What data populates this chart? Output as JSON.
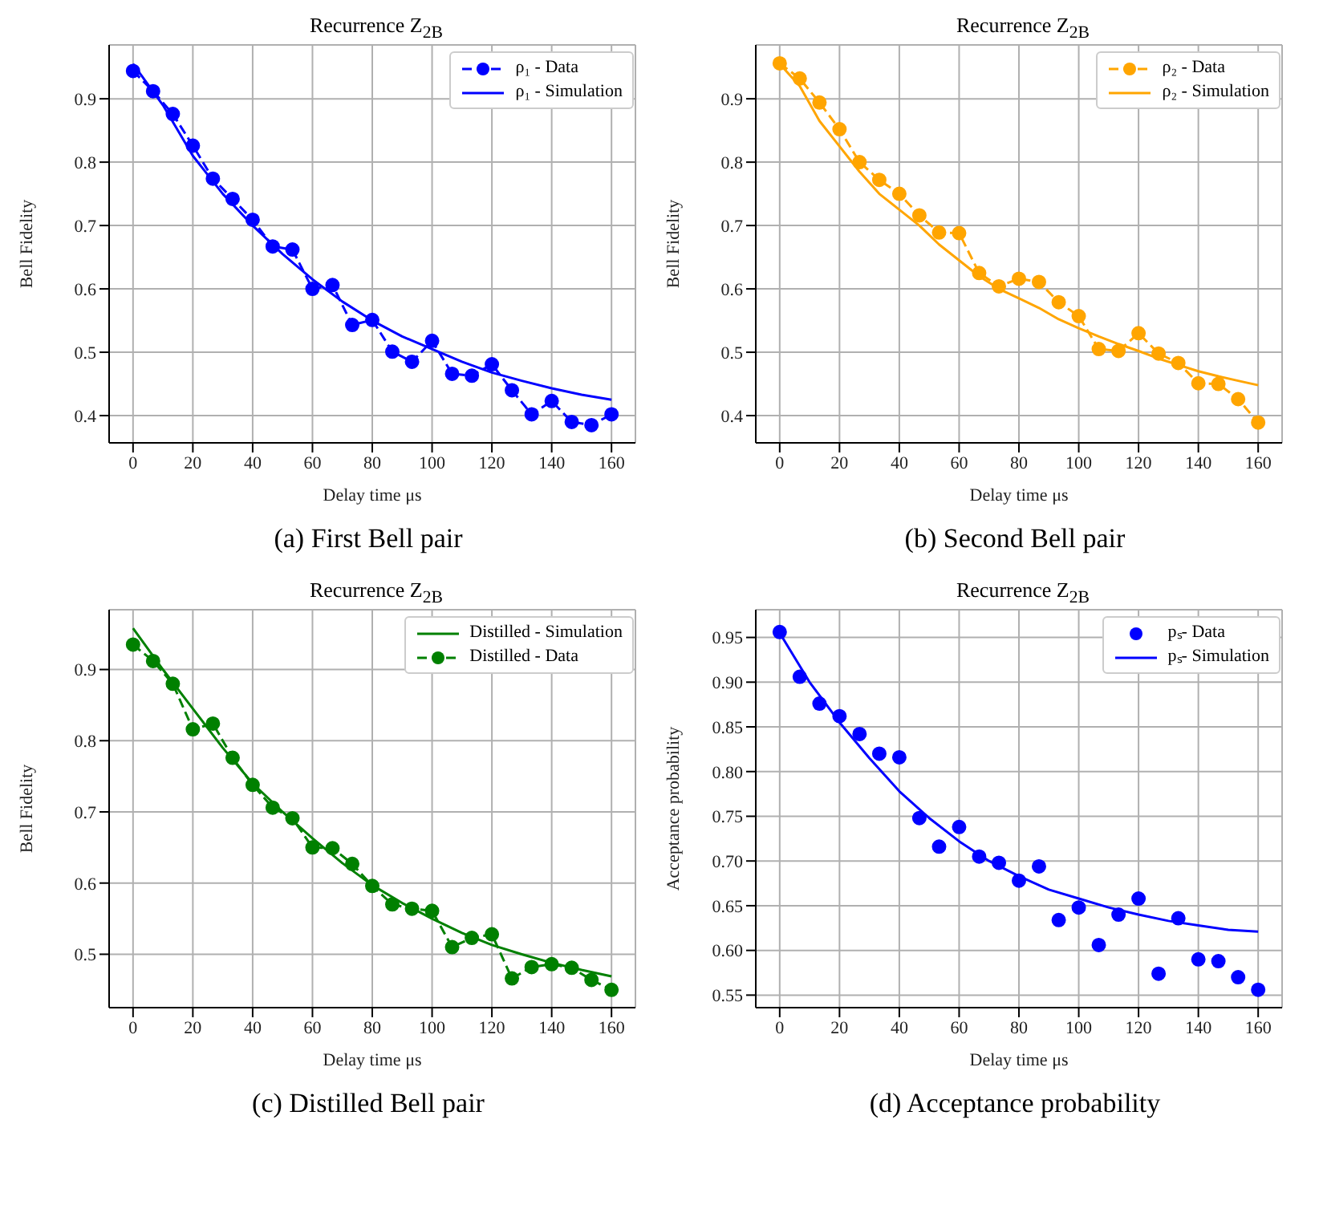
{
  "chart_data": [
    {
      "type": "line",
      "title": "Recurrence Z$_{2B}$",
      "xlabel": "Delay time μs",
      "ylabel": "Bell Fidelity",
      "annotations": [
        "(a) First Bell pair"
      ],
      "xlim": [
        -8,
        168
      ],
      "xticks": [
        0,
        20,
        40,
        60,
        80,
        100,
        120,
        140,
        160
      ],
      "ylim": [
        0.357,
        0.985
      ],
      "yticks": [
        0.4,
        0.5,
        0.6,
        0.7,
        0.8,
        0.9
      ],
      "grid": true,
      "legend": "top right",
      "series": [
        {
          "name": "ρ₁ - Data",
          "color": "#0000ff",
          "line_style": "dashed",
          "marker": "circle",
          "x": [
            0,
            6.7,
            13.3,
            20,
            26.7,
            33.3,
            40,
            46.7,
            53.3,
            60,
            66.7,
            73.3,
            80,
            86.7,
            93.3,
            100,
            106.7,
            113.3,
            120,
            126.7,
            133.3,
            140,
            146.7,
            153.3,
            160
          ],
          "values": [
            0.944,
            0.912,
            0.876,
            0.826,
            0.774,
            0.742,
            0.709,
            0.667,
            0.662,
            0.6,
            0.606,
            0.543,
            0.551,
            0.501,
            0.485,
            0.518,
            0.466,
            0.463,
            0.481,
            0.44,
            0.402,
            0.423,
            0.39,
            0.385,
            0.402
          ]
        },
        {
          "name": "ρ₁ - Simulation",
          "color": "#0000ff",
          "line_style": "solid",
          "marker": "none",
          "x": [
            0,
            10,
            20,
            30,
            40,
            50,
            60,
            70,
            80,
            90,
            100,
            110,
            120,
            130,
            140,
            150,
            160
          ],
          "values": [
            0.955,
            0.89,
            0.81,
            0.75,
            0.7,
            0.655,
            0.615,
            0.58,
            0.55,
            0.525,
            0.505,
            0.485,
            0.468,
            0.455,
            0.443,
            0.433,
            0.425
          ]
        }
      ]
    },
    {
      "type": "line",
      "title": "Recurrence Z$_{2B}$",
      "xlabel": "Delay time μs",
      "ylabel": "Bell Fidelity",
      "annotations": [
        "(b) Second Bell pair"
      ],
      "xlim": [
        -8,
        168
      ],
      "xticks": [
        0,
        20,
        40,
        60,
        80,
        100,
        120,
        140,
        160
      ],
      "ylim": [
        0.357,
        0.985
      ],
      "yticks": [
        0.4,
        0.5,
        0.6,
        0.7,
        0.8,
        0.9
      ],
      "grid": true,
      "legend": "top right",
      "series": [
        {
          "name": "ρ₂ - Data",
          "color": "#ffa500",
          "line_style": "dashed",
          "marker": "circle",
          "x": [
            0,
            6.7,
            13.3,
            20,
            26.7,
            33.3,
            40,
            46.7,
            53.3,
            60,
            66.7,
            73.3,
            80,
            86.7,
            93.3,
            100,
            106.7,
            113.3,
            120,
            126.7,
            133.3,
            140,
            146.7,
            153.3,
            160
          ],
          "values": [
            0.956,
            0.932,
            0.894,
            0.852,
            0.8,
            0.772,
            0.75,
            0.716,
            0.689,
            0.688,
            0.625,
            0.604,
            0.616,
            0.611,
            0.579,
            0.557,
            0.505,
            0.502,
            0.53,
            0.498,
            0.483,
            0.451,
            0.45,
            0.426,
            0.389
          ]
        },
        {
          "name": "ρ₂ - Simulation",
          "color": "#ffa500",
          "line_style": "solid",
          "marker": "none",
          "x": [
            0,
            6.7,
            13.3,
            20,
            26.7,
            33.3,
            40,
            46.7,
            53.3,
            60,
            66.7,
            73.3,
            80,
            86.7,
            93.3,
            100,
            106.7,
            113.3,
            120,
            126.7,
            133.3,
            140,
            146.7,
            153.3,
            160
          ],
          "values": [
            0.955,
            0.92,
            0.865,
            0.825,
            0.785,
            0.75,
            0.725,
            0.7,
            0.67,
            0.645,
            0.62,
            0.6,
            0.585,
            0.57,
            0.552,
            0.538,
            0.525,
            0.513,
            0.502,
            0.49,
            0.48,
            0.47,
            0.462,
            0.455,
            0.448
          ]
        }
      ]
    },
    {
      "type": "line",
      "title": "Recurrence Z$_{2B}$",
      "xlabel": "Delay time μs",
      "ylabel": "Bell Fidelity",
      "annotations": [
        "(c) Distilled Bell pair"
      ],
      "xlim": [
        -8,
        168
      ],
      "xticks": [
        0,
        20,
        40,
        60,
        80,
        100,
        120,
        140,
        160
      ],
      "ylim": [
        0.425,
        0.984
      ],
      "yticks": [
        0.5,
        0.6,
        0.7,
        0.8,
        0.9
      ],
      "grid": true,
      "legend": "top right",
      "series": [
        {
          "name": "Distilled - Simulation",
          "color": "#008000",
          "line_style": "solid",
          "marker": "none",
          "x": [
            0,
            10,
            20,
            30,
            40,
            50,
            60,
            70,
            80,
            90,
            100,
            110,
            120,
            130,
            140,
            150,
            160
          ],
          "values": [
            0.958,
            0.9,
            0.845,
            0.79,
            0.74,
            0.7,
            0.663,
            0.628,
            0.597,
            0.572,
            0.55,
            0.53,
            0.513,
            0.5,
            0.488,
            0.478,
            0.469
          ]
        },
        {
          "name": "Distilled - Data",
          "color": "#008000",
          "line_style": "dashed",
          "marker": "circle",
          "x": [
            0,
            6.7,
            13.3,
            20,
            26.7,
            33.3,
            40,
            46.7,
            53.3,
            60,
            66.7,
            73.3,
            80,
            86.7,
            93.3,
            100,
            106.7,
            113.3,
            120,
            126.7,
            133.3,
            140,
            146.7,
            153.3,
            160
          ],
          "values": [
            0.935,
            0.912,
            0.88,
            0.816,
            0.824,
            0.776,
            0.738,
            0.706,
            0.691,
            0.65,
            0.649,
            0.627,
            0.596,
            0.57,
            0.564,
            0.561,
            0.51,
            0.523,
            0.528,
            0.466,
            0.482,
            0.486,
            0.481,
            0.464,
            0.45
          ]
        }
      ]
    },
    {
      "type": "line",
      "title": "Recurrence Z$_{2B}$",
      "xlabel": "Delay time μs",
      "ylabel": "Acceptance probability",
      "annotations": [
        "(d) Acceptance probability"
      ],
      "xlim": [
        -8,
        168
      ],
      "xticks": [
        0,
        20,
        40,
        60,
        80,
        100,
        120,
        140,
        160
      ],
      "ylim": [
        0.536,
        0.981
      ],
      "yticks": [
        0.55,
        {
          "value": 0.6,
          "label": "0.60"
        },
        0.65,
        {
          "value": 0.7,
          "label": "0.70"
        },
        0.75,
        {
          "value": 0.8,
          "label": "0.80"
        },
        0.85,
        {
          "value": 0.9,
          "label": "0.90"
        },
        0.95
      ],
      "grid": true,
      "legend": "top right",
      "series": [
        {
          "name": "pₛ- Data",
          "type": "scatter",
          "color": "#0000ff",
          "marker": "circle",
          "x": [
            0,
            6.7,
            13.3,
            20,
            26.7,
            33.3,
            40,
            46.7,
            53.3,
            60,
            66.7,
            73.3,
            80,
            86.7,
            93.3,
            100,
            106.7,
            113.3,
            120,
            126.7,
            133.3,
            140,
            146.7,
            153.3,
            160
          ],
          "values": [
            0.956,
            0.906,
            0.876,
            0.862,
            0.842,
            0.82,
            0.816,
            0.748,
            0.716,
            0.738,
            0.705,
            0.698,
            0.678,
            0.694,
            0.634,
            0.648,
            0.606,
            0.64,
            0.658,
            0.574,
            0.636,
            0.59,
            0.588,
            0.57,
            0.556
          ]
        },
        {
          "name": "pₛ- Simulation",
          "color": "#0000ff",
          "line_style": "solid",
          "marker": "none",
          "x": [
            0,
            10,
            20,
            30,
            40,
            50,
            60,
            70,
            80,
            90,
            100,
            110,
            120,
            130,
            140,
            150,
            160
          ],
          "values": [
            0.955,
            0.9,
            0.855,
            0.815,
            0.778,
            0.748,
            0.722,
            0.7,
            0.683,
            0.668,
            0.658,
            0.648,
            0.64,
            0.633,
            0.628,
            0.623,
            0.621
          ]
        }
      ]
    }
  ]
}
